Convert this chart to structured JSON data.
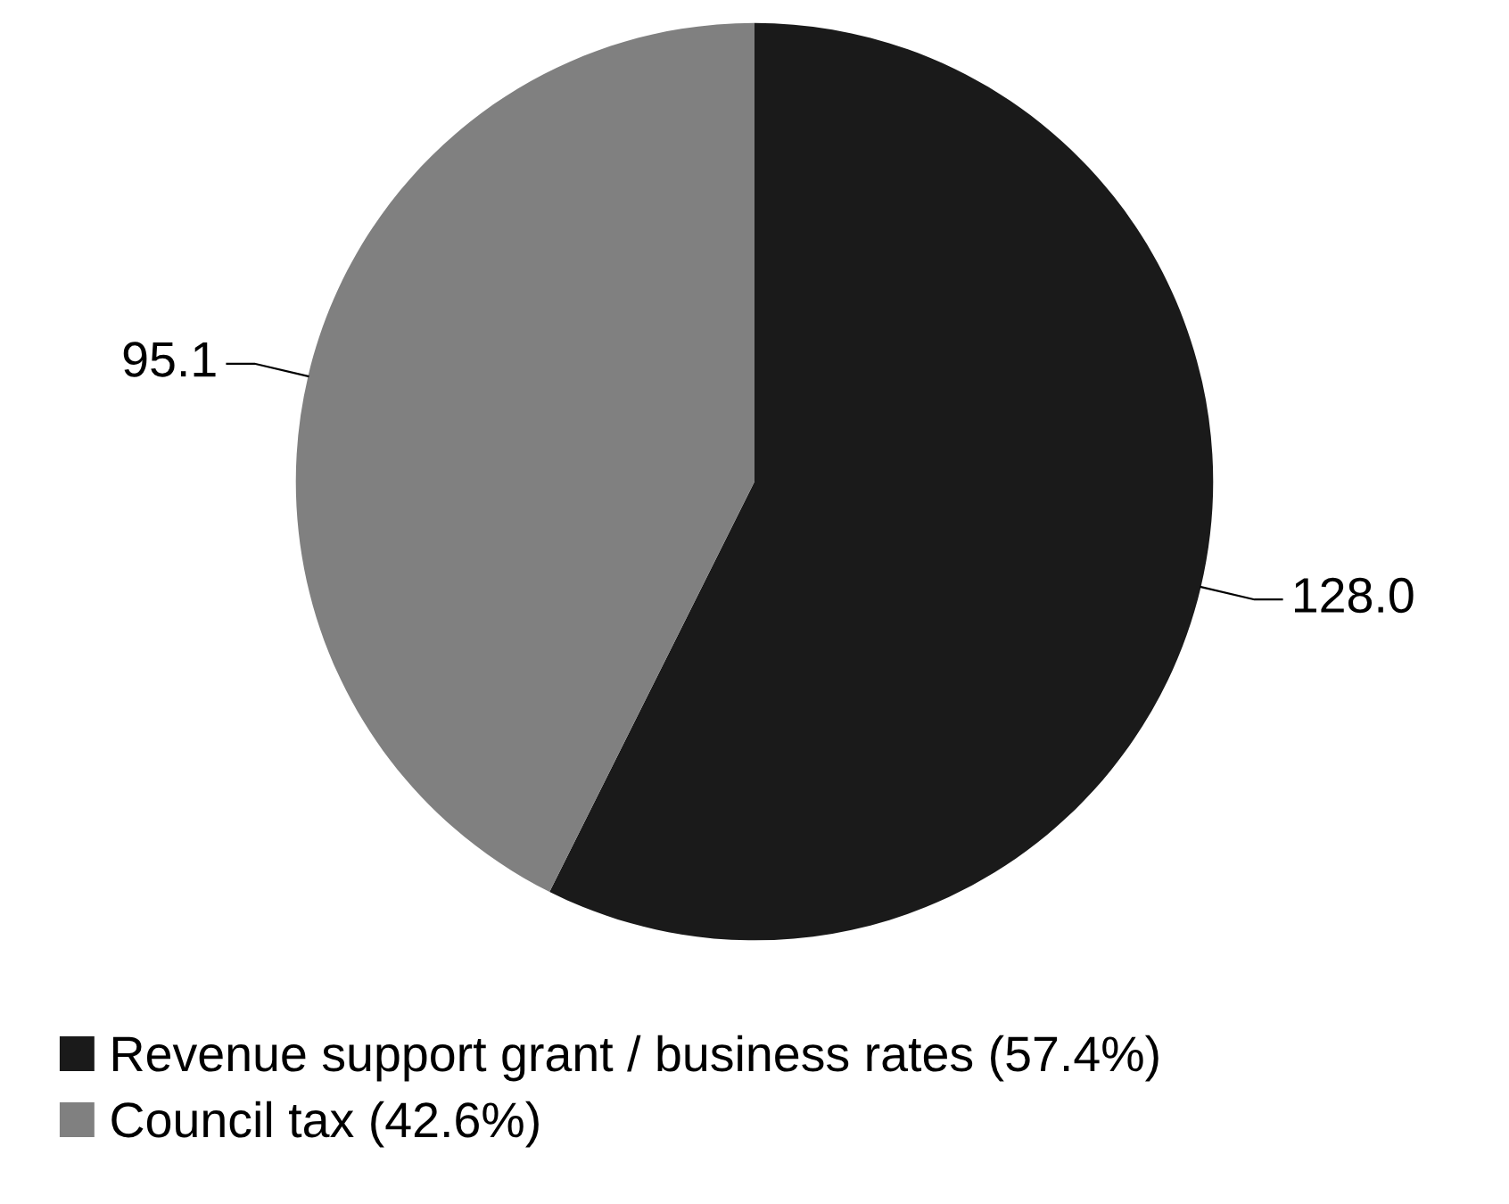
{
  "chart_data": {
    "type": "pie",
    "categories": [
      "Revenue support grant / business rates (57.4%)",
      "Council tax (42.6%)"
    ],
    "values": [
      128.0,
      95.1
    ],
    "colors": [
      "#1a1a1a",
      "#808080"
    ],
    "value_labels": [
      "128.0",
      "95.1"
    ],
    "legend": "bottom"
  }
}
